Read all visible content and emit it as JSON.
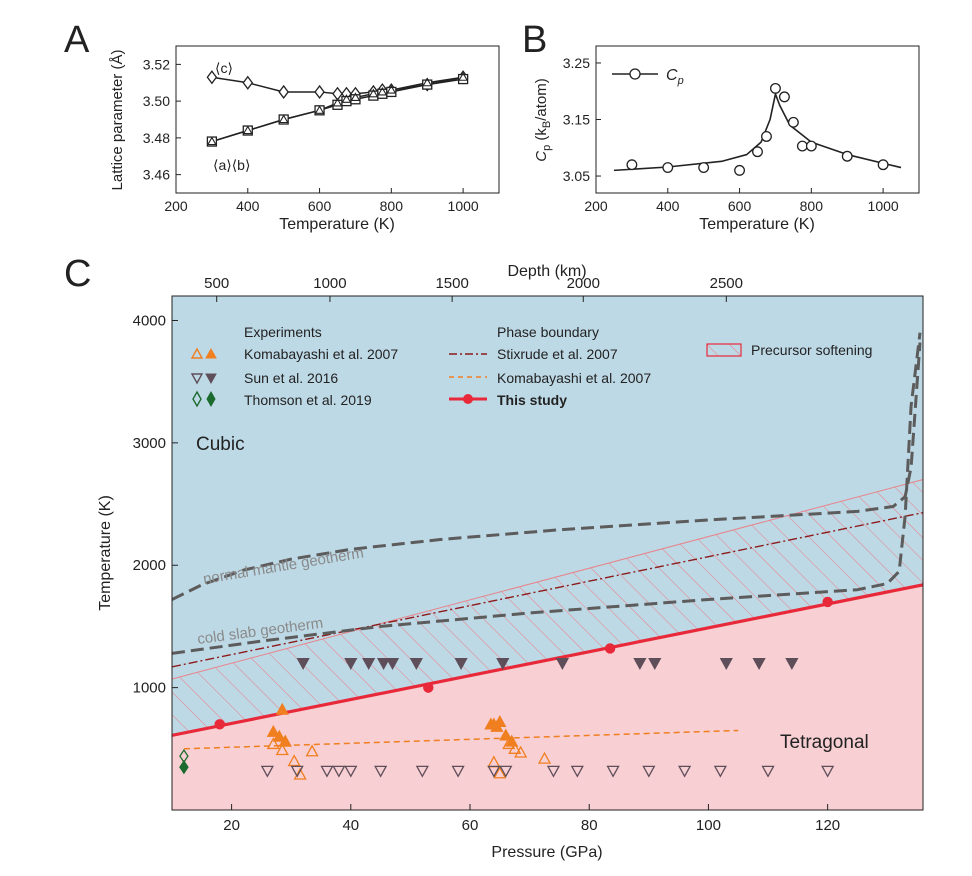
{
  "panels": {
    "A": {
      "letter": "A",
      "ylabel": "Lattice parameter (Å)",
      "xlabel": "Temperature (K)",
      "xlim": [
        200,
        1100
      ],
      "ylim": [
        3.45,
        3.53
      ],
      "xticks": [
        200,
        400,
        600,
        800,
        1000
      ],
      "yticks": [
        3.46,
        3.48,
        3.5,
        3.52
      ],
      "label_c": "⟨c⟩",
      "label_ab": "⟨a⟩⟨b⟩"
    },
    "B": {
      "letter": "B",
      "ylabel_main": "C",
      "ylabel_sub": "p",
      "ylabel_unit_pre": " (k",
      "ylabel_unit_sub": "B",
      "ylabel_unit_post": "/atom)",
      "xlabel": "Temperature (K)",
      "xlim": [
        200,
        1100
      ],
      "ylim": [
        3.02,
        3.28
      ],
      "xticks": [
        200,
        400,
        600,
        800,
        1000
      ],
      "yticks": [
        3.05,
        3.15,
        3.25
      ],
      "legend_main": "C",
      "legend_sub": "p"
    },
    "C": {
      "letter": "C",
      "xlabel": "Pressure (GPa)",
      "ylabel": "Temperature (K)",
      "top_xlabel": "Depth (km)",
      "xlim": [
        10,
        136
      ],
      "ylim": [
        0,
        4200
      ],
      "xticks": [
        20,
        40,
        60,
        80,
        100,
        120
      ],
      "yticks": [
        1000,
        2000,
        3000,
        4000
      ],
      "top_ticks": [
        {
          "label": "500",
          "p": 17.5
        },
        {
          "label": "1000",
          "p": 36.5
        },
        {
          "label": "1500",
          "p": 57
        },
        {
          "label": "2000",
          "p": 79
        },
        {
          "label": "2500",
          "p": 103
        }
      ],
      "region_cubic": "Cubic",
      "region_tetragonal": "Tetragonal",
      "label_normal_geotherm": "normal mantle geotherm",
      "label_cold_geotherm": "cold slab geotherm",
      "legend": {
        "experiments_title": "Experiments",
        "exp_items": [
          "Komabayashi et al. 2007",
          "Sun et al. 2016",
          "Thomson et al. 2019"
        ],
        "phase_title": "Phase boundary",
        "phase_items": [
          "Stixrude et al. 2007",
          "Komabayashi et al. 2007",
          "This study"
        ],
        "softening": "Precursor softening"
      }
    }
  },
  "chart_data": [
    {
      "panel": "A",
      "type": "line",
      "title": "",
      "xlabel": "Temperature (K)",
      "ylabel": "Lattice parameter (Å)",
      "series": [
        {
          "name": "⟨c⟩",
          "marker": "diamond",
          "x": [
            300,
            400,
            500,
            600,
            650,
            675,
            700,
            750,
            775,
            800,
            900,
            1000
          ],
          "y": [
            3.513,
            3.51,
            3.505,
            3.505,
            3.504,
            3.504,
            3.504,
            3.505,
            3.506,
            3.506,
            3.509,
            3.513
          ]
        },
        {
          "name": "⟨a⟩",
          "marker": "square",
          "x": [
            300,
            400,
            500,
            600,
            650,
            675,
            700,
            750,
            775,
            800,
            900,
            1000
          ],
          "y": [
            3.478,
            3.484,
            3.49,
            3.495,
            3.498,
            3.5,
            3.501,
            3.503,
            3.504,
            3.505,
            3.509,
            3.512
          ]
        },
        {
          "name": "⟨b⟩",
          "marker": "triangle",
          "x": [
            300,
            400,
            500,
            600,
            650,
            675,
            700,
            750,
            775,
            800,
            900,
            1000
          ],
          "y": [
            3.478,
            3.484,
            3.49,
            3.495,
            3.499,
            3.501,
            3.502,
            3.504,
            3.505,
            3.506,
            3.51,
            3.513
          ]
        }
      ]
    },
    {
      "panel": "B",
      "type": "scatter",
      "title": "",
      "xlabel": "Temperature (K)",
      "ylabel": "Cp (kB/atom)",
      "series": [
        {
          "name": "Cp",
          "marker": "circle",
          "x": [
            300,
            400,
            500,
            600,
            650,
            675,
            700,
            725,
            750,
            775,
            800,
            900,
            1000
          ],
          "y": [
            3.07,
            3.065,
            3.065,
            3.06,
            3.093,
            3.12,
            3.205,
            3.19,
            3.145,
            3.103,
            3.103,
            3.085,
            3.07
          ]
        },
        {
          "name": "fit",
          "marker": "none",
          "x": [
            250,
            400,
            550,
            620,
            660,
            685,
            700,
            712,
            740,
            800,
            900,
            1050
          ],
          "y": [
            3.06,
            3.066,
            3.076,
            3.088,
            3.11,
            3.15,
            3.195,
            3.175,
            3.14,
            3.11,
            3.088,
            3.065
          ]
        }
      ]
    },
    {
      "panel": "C",
      "type": "scatter",
      "title": "",
      "xlabel": "Pressure (GPa)",
      "ylabel": "Temperature (K)",
      "series": [
        {
          "name": "Komabayashi et al. 2007 (filled)",
          "marker": "triangle-up",
          "fill": "#f07f20",
          "x": [
            27,
            28,
            29,
            63.5,
            64.5,
            65,
            66,
            67,
            28.5,
            64
          ],
          "y": [
            640,
            600,
            560,
            700,
            680,
            720,
            610,
            560,
            820,
            700
          ]
        },
        {
          "name": "Komabayashi et al. 2007 (open)",
          "marker": "triangle-up",
          "fill": "none",
          "x": [
            27,
            28.5,
            30.5,
            31.5,
            33.5,
            64,
            65,
            66.5,
            67.5,
            68.5,
            72.5,
            29
          ],
          "y": [
            540,
            490,
            400,
            290,
            480,
            390,
            300,
            540,
            500,
            470,
            420,
            560
          ]
        },
        {
          "name": "Sun et al. 2016 (filled)",
          "marker": "triangle-down",
          "fill": "#5e4e5a",
          "x": [
            32,
            40,
            43,
            45.5,
            47,
            51,
            58.5,
            65.5,
            75.5,
            88.5,
            91,
            103,
            108.5,
            114
          ],
          "y": [
            1200,
            1200,
            1200,
            1200,
            1200,
            1200,
            1200,
            1200,
            1200,
            1200,
            1200,
            1200,
            1200,
            1200
          ]
        },
        {
          "name": "Sun et al. 2016 (open)",
          "marker": "triangle-down",
          "fill": "none",
          "x": [
            26,
            31,
            36,
            38,
            40,
            45,
            52,
            58,
            64,
            66,
            74,
            78,
            84,
            90,
            96,
            102,
            110,
            120
          ],
          "y": [
            320,
            320,
            320,
            320,
            320,
            320,
            320,
            320,
            320,
            320,
            320,
            320,
            320,
            320,
            320,
            320,
            320,
            320
          ]
        },
        {
          "name": "Thomson et al. 2019",
          "marker": "diamond",
          "fill": "#1c6b2e",
          "x": [
            12,
            12
          ],
          "y": [
            350,
            440
          ]
        },
        {
          "name": "This study",
          "marker": "circle",
          "fill": "#e8293a",
          "x": [
            18,
            53,
            83.5,
            120
          ],
          "y": [
            700,
            1000,
            1320,
            1700
          ]
        },
        {
          "name": "This study boundary",
          "marker": "none",
          "line": "solid",
          "x": [
            10,
            136
          ],
          "y": [
            610,
            1840
          ]
        },
        {
          "name": "Stixrude et al. 2007",
          "marker": "none",
          "line": "dashdot",
          "x": [
            10,
            136
          ],
          "y": [
            1170,
            2430
          ]
        },
        {
          "name": "Komabayashi et al. 2007 boundary",
          "marker": "none",
          "line": "dashed",
          "x": [
            12,
            105
          ],
          "y": [
            500,
            650
          ]
        },
        {
          "name": "normal mantle geotherm",
          "marker": "none",
          "line": "dashed",
          "x": [
            10,
            15,
            22,
            30,
            40,
            55,
            75,
            100,
            125,
            131,
            133,
            134,
            135.5
          ],
          "y": [
            1720,
            1840,
            1960,
            2050,
            2130,
            2210,
            2290,
            2370,
            2440,
            2480,
            2560,
            2800,
            3820
          ]
        },
        {
          "name": "cold slab geotherm",
          "marker": "none",
          "line": "dashed",
          "x": [
            10,
            25,
            45,
            70,
            100,
            125,
            130,
            132,
            133,
            134,
            135.5
          ],
          "y": [
            1280,
            1380,
            1500,
            1610,
            1720,
            1800,
            1850,
            1950,
            2400,
            3300,
            3900
          ]
        },
        {
          "name": "Precursor softening",
          "marker": "none",
          "line": "band",
          "x": [
            10,
            136
          ],
          "lower": [
            610,
            1840
          ],
          "upper": [
            1070,
            2700
          ]
        }
      ]
    }
  ]
}
